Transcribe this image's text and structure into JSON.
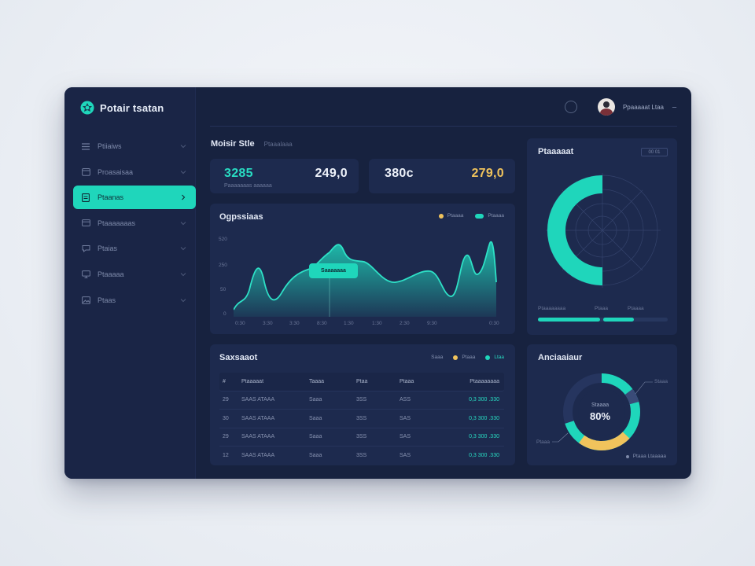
{
  "app": {
    "name": "Potair tsatan"
  },
  "sidebar": {
    "items": [
      {
        "label": "Ptiiaiws",
        "icon": "list-icon",
        "active": false
      },
      {
        "label": "Proasaisaa",
        "icon": "calendar-icon",
        "active": false
      },
      {
        "label": "Ptaanas",
        "icon": "document-icon",
        "active": true
      },
      {
        "label": "Ptaaaaaaas",
        "icon": "card-icon",
        "active": false
      },
      {
        "label": "Ptaias",
        "icon": "chat-icon",
        "active": false
      },
      {
        "label": "Ptaaaaa",
        "icon": "monitor-icon",
        "active": false
      },
      {
        "label": "Ptaas",
        "icon": "image-icon",
        "active": false
      }
    ]
  },
  "header": {
    "user_name": "Ppaaaaat Ltaa"
  },
  "page": {
    "title": "Moisir Stle",
    "subtitle": "Ptaaalaaa"
  },
  "stats": [
    {
      "primary": "3285",
      "secondary": "249,0",
      "sub": "Paaaaaaas aaaaaa"
    },
    {
      "primary": "380c",
      "secondary": "279,0"
    }
  ],
  "colors": {
    "accent": "#1fd6bb",
    "gold": "#f0c35c",
    "panel": "#1d2a4e",
    "background": "#17223f"
  },
  "area_chart": {
    "title": "Ogpssiaas",
    "legend": [
      {
        "label": "Ptaaaa",
        "color": "#f0c35c"
      },
      {
        "label": "Ptaaaa",
        "color": "#1fd6bb"
      }
    ],
    "tooltip": "Saaaaaaa",
    "y_ticks": [
      "520",
      "250",
      "50",
      "0"
    ],
    "x_ticks": [
      "0:30",
      "3:30",
      "3:30",
      "8:30",
      "1:30",
      "1:30",
      "2:30",
      "9:30",
      "0:30"
    ]
  },
  "table": {
    "title": "Saxsaaot",
    "filters": [
      {
        "label": "Saaa"
      },
      {
        "label": "Ptaaa",
        "color": "#f0c35c"
      },
      {
        "label": "Ltaa",
        "color": "#1fd6bb"
      }
    ],
    "headers": [
      "#",
      "Ptaaaaat",
      "Taaaa",
      "Ptaa",
      "Ptaaa",
      "Ptaaaaaaaa"
    ],
    "rows": [
      [
        "29",
        "SAAS ATAAA",
        "Saaa",
        "3SS",
        "ASS",
        "0,3 300 .330"
      ],
      [
        "30",
        "SAAS ATAAA",
        "Saaa",
        "3SS",
        "SAS",
        "0,3 300 .330"
      ],
      [
        "29",
        "SAAS ATAAA",
        "Saaa",
        "3SS",
        "SAS",
        "0,3 300 .330"
      ],
      [
        "12",
        "SAAS ATAAA",
        "Saaa",
        "3SS",
        "SAS",
        "0,3 300 .330"
      ]
    ]
  },
  "radar": {
    "title": "Ptaaaaat",
    "button": "00 01",
    "labels": [
      "Ptaaaaaaaa",
      "Ptaaa",
      "Ptaaaa"
    ],
    "bars": [
      0.38,
      0.19,
      0.19
    ]
  },
  "donut": {
    "title": "Anciaaiaur",
    "center_label": "Staaaa",
    "center_value": "80%",
    "callouts": [
      "Staaa",
      "Ptaaa"
    ],
    "footer": "Ptaaa Ltaaaaa"
  }
}
